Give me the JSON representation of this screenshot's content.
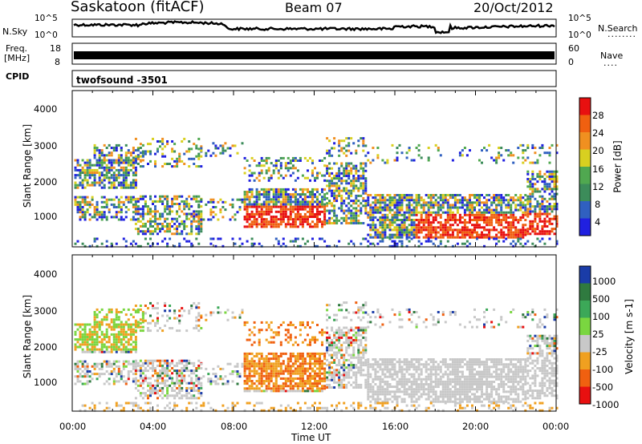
{
  "header": {
    "station": "Saskatoon (fitACF)",
    "beam": "Beam 07",
    "date": "20/Oct/2012"
  },
  "noise_panel": {
    "left_label": "N.Sky",
    "left_ticks": [
      "10^5",
      "10^0"
    ],
    "right_label": "N.Search",
    "right_ticks": [
      "10^5",
      "10^0"
    ],
    "right_dots": "........"
  },
  "freq_panel": {
    "left_label_line1": "Freq.",
    "left_label_line2": "[MHz]",
    "left_ticks": [
      "18",
      "8"
    ],
    "right_label": "Nave",
    "right_ticks": [
      "60",
      "0"
    ],
    "right_dots": "...."
  },
  "cpid_panel": {
    "label": "CPID",
    "program": "twofsound -3501"
  },
  "chart_data": [
    {
      "type": "heatmap",
      "name": "power",
      "ylabel": "Slant Range [km]",
      "yticks": [
        "1000",
        "2000",
        "3000",
        "4000"
      ],
      "ylim": [
        200,
        4600
      ],
      "xlim_hours": [
        0,
        24
      ],
      "colorbar_label": "Power [dB]",
      "colorbar_ticks": [
        "4",
        "8",
        "12",
        "16",
        "20",
        "24",
        "28"
      ],
      "colorbar_colors": [
        "#2020e0",
        "#3060c0",
        "#3c8c5a",
        "#50a850",
        "#d8d020",
        "#f09020",
        "#f06010",
        "#e81010"
      ]
    },
    {
      "type": "heatmap",
      "name": "velocity",
      "ylabel": "Slant Range [km]",
      "yticks": [
        "1000",
        "2000",
        "3000",
        "4000"
      ],
      "ylim": [
        200,
        4600
      ],
      "xlim_hours": [
        0,
        24
      ],
      "colorbar_label": "Velocity [m s-1]",
      "colorbar_ticks": [
        "1000",
        "500",
        "100",
        "25",
        "-25",
        "-100",
        "-500",
        "-1000"
      ],
      "colorbar_colors": [
        "#1a3ca8",
        "#2f7a3f",
        "#3ca858",
        "#7ad640",
        "#c8c8c8",
        "#f0a020",
        "#f06010",
        "#e81010"
      ]
    }
  ],
  "xaxis": {
    "ticks": [
      "00:00",
      "04:00",
      "08:00",
      "12:00",
      "16:00",
      "20:00",
      "00:00"
    ],
    "label": "Time UT"
  }
}
